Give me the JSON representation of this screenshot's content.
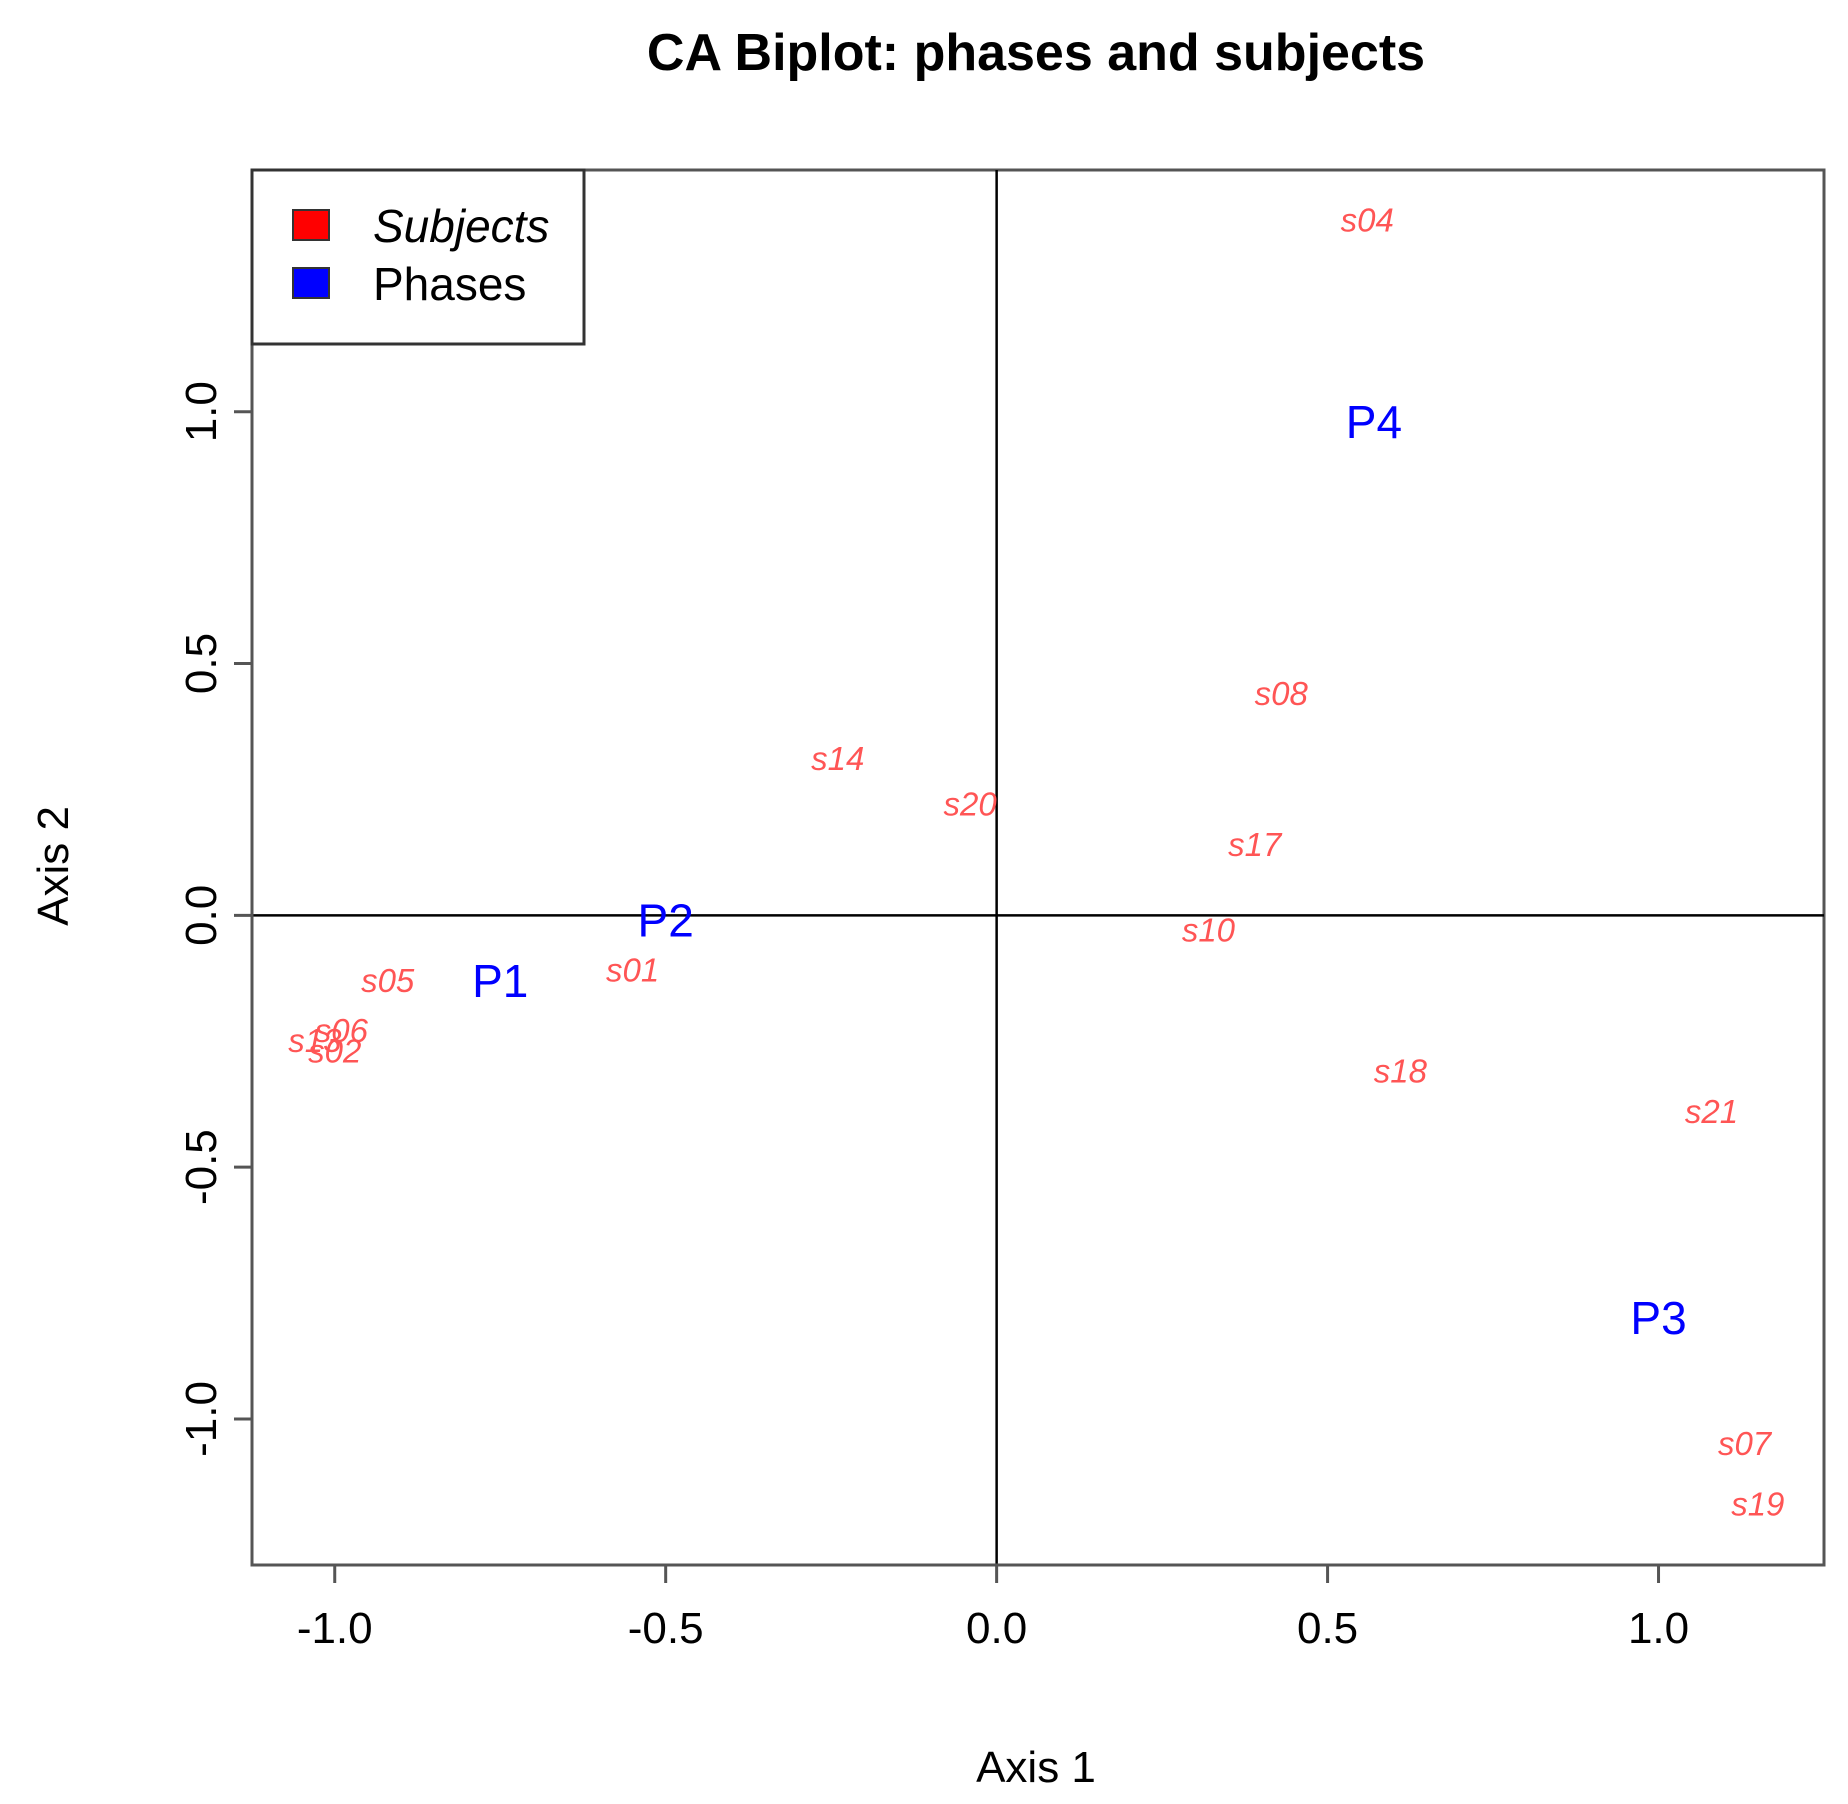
{
  "chart_data": {
    "type": "scatter",
    "title": "CA Biplot: phases and subjects",
    "xlabel": "Axis 1",
    "ylabel": "Axis 2",
    "xlim": [
      -1.125,
      1.25
    ],
    "ylim": [
      -1.29,
      1.48
    ],
    "x_ticks": [
      {
        "value": -1.0,
        "label": "-1.0"
      },
      {
        "value": -0.5,
        "label": "-0.5"
      },
      {
        "value": 0.0,
        "label": "0.0"
      },
      {
        "value": 0.5,
        "label": "0.5"
      },
      {
        "value": 1.0,
        "label": "1.0"
      }
    ],
    "y_ticks": [
      {
        "value": -1.0,
        "label": "-1.0"
      },
      {
        "value": -0.5,
        "label": "-0.5"
      },
      {
        "value": 0.0,
        "label": "0.0"
      },
      {
        "value": 0.5,
        "label": "0.5"
      },
      {
        "value": 1.0,
        "label": "1.0"
      }
    ],
    "reference_lines": {
      "x": 0,
      "y": 0
    },
    "grid": false,
    "legend": {
      "position": "top-left",
      "entries": [
        {
          "label": "Subjects",
          "color": "#ff0000",
          "italic": true
        },
        {
          "label": "Phases",
          "color": "#0000ff",
          "italic": false
        }
      ]
    },
    "series": [
      {
        "name": "Subjects",
        "color": "#ff5555",
        "points": [
          {
            "label": "s04",
            "x": 0.56,
            "y": 1.38
          },
          {
            "label": "s08",
            "x": 0.43,
            "y": 0.44
          },
          {
            "label": "s14",
            "x": -0.24,
            "y": 0.31
          },
          {
            "label": "s20",
            "x": -0.04,
            "y": 0.22
          },
          {
            "label": "s17",
            "x": 0.39,
            "y": 0.14
          },
          {
            "label": "s10",
            "x": 0.32,
            "y": -0.03
          },
          {
            "label": "s05",
            "x": -0.92,
            "y": -0.13
          },
          {
            "label": "s01",
            "x": -0.55,
            "y": -0.11
          },
          {
            "label": "s06",
            "x": -0.99,
            "y": -0.23
          },
          {
            "label": "s13",
            "x": -1.03,
            "y": -0.25
          },
          {
            "label": "s02",
            "x": -1.0,
            "y": -0.27
          },
          {
            "label": "s18",
            "x": 0.61,
            "y": -0.31
          },
          {
            "label": "s21",
            "x": 1.08,
            "y": -0.39
          },
          {
            "label": "s07",
            "x": 1.13,
            "y": -1.05
          },
          {
            "label": "s19",
            "x": 1.15,
            "y": -1.17
          }
        ]
      },
      {
        "name": "Phases",
        "color": "#0000ff",
        "points": [
          {
            "label": "P1",
            "x": -0.75,
            "y": -0.13
          },
          {
            "label": "P2",
            "x": -0.5,
            "y": -0.01
          },
          {
            "label": "P3",
            "x": 1.0,
            "y": -0.8
          },
          {
            "label": "P4",
            "x": 0.57,
            "y": 0.98
          }
        ]
      }
    ]
  }
}
